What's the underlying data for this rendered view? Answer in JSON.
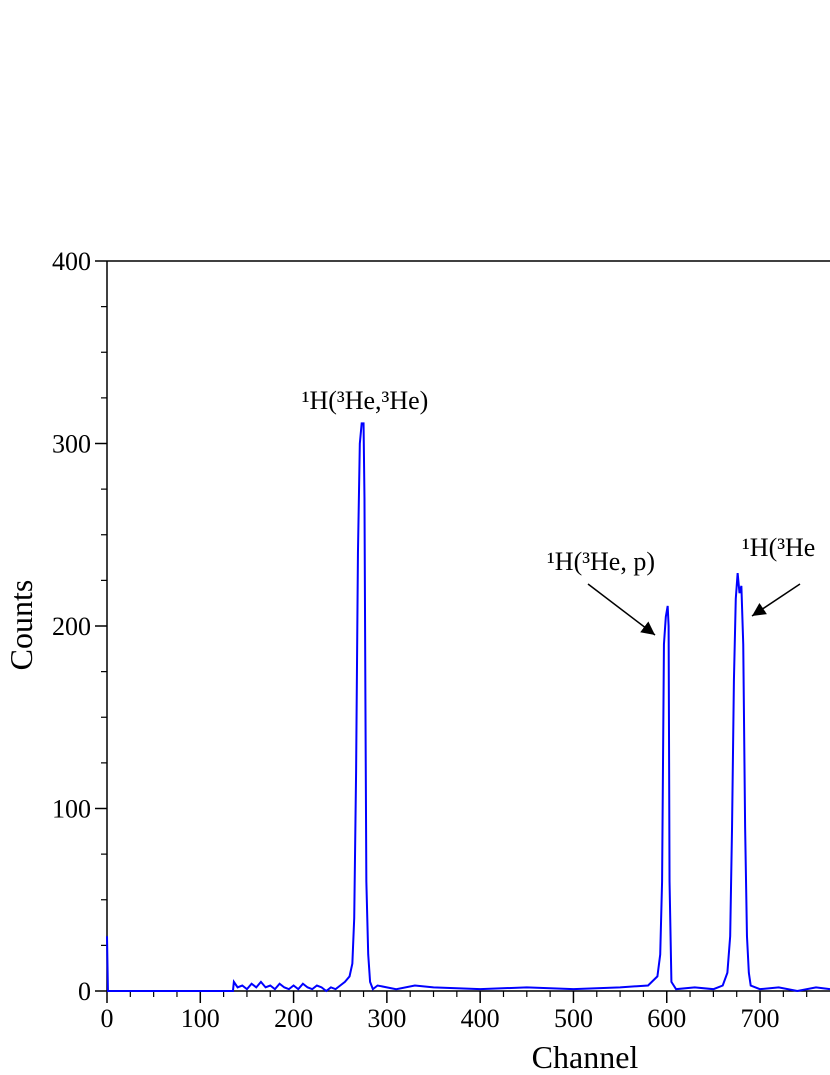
{
  "chart_data": {
    "type": "line",
    "xlabel": "Channel",
    "ylabel": "Counts",
    "xlim": [
      0,
      775
    ],
    "ylim": [
      0,
      400
    ],
    "xticks": [
      0,
      100,
      200,
      300,
      400,
      500,
      600,
      700
    ],
    "yticks": [
      0,
      100,
      200,
      300,
      400
    ],
    "xminorticks": [
      25,
      50,
      75,
      125,
      150,
      175,
      225,
      250,
      275,
      325,
      350,
      375,
      425,
      450,
      475,
      525,
      550,
      575,
      625,
      650,
      675,
      725,
      750
    ],
    "yminorticks": [
      25,
      50,
      75,
      125,
      150,
      175,
      225,
      250,
      275,
      325,
      350,
      375
    ],
    "series": [
      {
        "color": "#0000ff",
        "x": [
          0,
          1,
          135,
          136,
          140,
          145,
          150,
          155,
          160,
          165,
          170,
          175,
          180,
          185,
          190,
          195,
          200,
          205,
          210,
          215,
          220,
          225,
          230,
          235,
          240,
          245,
          250,
          255,
          260,
          263,
          265,
          267,
          269,
          271,
          273,
          275,
          276,
          277,
          278,
          280,
          282,
          285,
          290,
          300,
          310,
          330,
          350,
          400,
          450,
          500,
          550,
          580,
          590,
          593,
          595,
          597,
          599,
          601,
          602,
          603,
          605,
          610,
          630,
          650,
          660,
          665,
          668,
          670,
          672,
          674,
          676,
          678,
          680,
          682,
          684,
          686,
          688,
          690,
          700,
          720,
          740,
          760,
          775
        ],
        "values": [
          30,
          0,
          0,
          5,
          2,
          3,
          1,
          4,
          2,
          5,
          2,
          3,
          1,
          4,
          2,
          1,
          3,
          1,
          4,
          2,
          1,
          3,
          2,
          0,
          2,
          1,
          3,
          5,
          8,
          15,
          40,
          120,
          240,
          300,
          311,
          311,
          270,
          160,
          60,
          20,
          5,
          1,
          3,
          2,
          1,
          3,
          2,
          1,
          2,
          1,
          2,
          3,
          8,
          20,
          60,
          190,
          205,
          211,
          200,
          60,
          5,
          1,
          2,
          1,
          3,
          10,
          30,
          90,
          170,
          215,
          229,
          218,
          222,
          190,
          90,
          30,
          10,
          3,
          1,
          2,
          0,
          2,
          1
        ]
      }
    ],
    "annotations": [
      {
        "text": "¹H(³He,³He)"
      },
      {
        "text": "¹H(³He, p)"
      },
      {
        "text": "¹H(³He"
      }
    ]
  }
}
